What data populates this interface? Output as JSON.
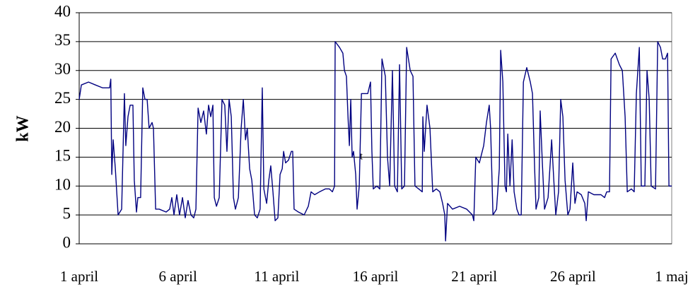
{
  "chart_data": {
    "type": "line",
    "y_label": "kW",
    "annotation": "t",
    "color": "#000080",
    "grid": true,
    "ylim": [
      0,
      40
    ],
    "yticks": [
      0,
      5,
      10,
      15,
      20,
      25,
      30,
      35,
      40
    ],
    "xlim": [
      0,
      30
    ],
    "xticks": [
      {
        "value": 0,
        "label": "1 april"
      },
      {
        "value": 5,
        "label": "6 april"
      },
      {
        "value": 10,
        "label": "11 april"
      },
      {
        "value": 15,
        "label": "16 april"
      },
      {
        "value": 20,
        "label": "21 april"
      },
      {
        "value": 25,
        "label": "26 april"
      },
      {
        "value": 30,
        "label": "1 maj"
      }
    ],
    "x": [
      0,
      0.11,
      0.47,
      0.82,
      1.18,
      1.54,
      1.6,
      1.65,
      1.72,
      1.83,
      1.97,
      2.15,
      2.29,
      2.36,
      2.47,
      2.58,
      2.72,
      2.79,
      2.9,
      2.97,
      3.11,
      3.22,
      3.33,
      3.44,
      3.54,
      3.69,
      3.76,
      3.87,
      4.05,
      4.4,
      4.58,
      4.69,
      4.8,
      4.94,
      5.08,
      5.23,
      5.37,
      5.51,
      5.66,
      5.8,
      5.91,
      6.02,
      6.16,
      6.3,
      6.44,
      6.55,
      6.66,
      6.77,
      6.84,
      6.95,
      7.09,
      7.23,
      7.37,
      7.48,
      7.59,
      7.7,
      7.81,
      7.91,
      8.06,
      8.2,
      8.31,
      8.42,
      8.51,
      8.63,
      8.74,
      8.88,
      9.02,
      9.16,
      9.27,
      9.35,
      9.49,
      9.6,
      9.7,
      9.81,
      9.92,
      10.06,
      10.17,
      10.28,
      10.35,
      10.45,
      10.6,
      10.74,
      10.81,
      10.88,
      11.1,
      11.39,
      11.6,
      11.74,
      11.92,
      12.17,
      12.46,
      12.67,
      12.82,
      12.93,
      12.96,
      13.18,
      13.35,
      13.43,
      13.53,
      13.61,
      13.68,
      13.75,
      13.82,
      13.89,
      14.0,
      14.07,
      14.18,
      14.29,
      14.43,
      14.61,
      14.75,
      14.82,
      14.89,
      15.07,
      15.22,
      15.33,
      15.5,
      15.61,
      15.72,
      15.86,
      15.97,
      16.11,
      16.22,
      16.33,
      16.47,
      16.58,
      16.76,
      16.9,
      17.0,
      17.19,
      17.37,
      17.4,
      17.47,
      17.61,
      17.76,
      17.9,
      18.08,
      18.26,
      18.4,
      18.51,
      18.55,
      18.65,
      18.9,
      19.26,
      19.62,
      19.91,
      19.98,
      20.08,
      20.26,
      20.48,
      20.62,
      20.76,
      20.83,
      20.95,
      21.13,
      21.27,
      21.34,
      21.45,
      21.56,
      21.63,
      21.7,
      21.81,
      21.92,
      22.02,
      22.16,
      22.27,
      22.38,
      22.49,
      22.66,
      22.84,
      22.95,
      23.06,
      23.13,
      23.27,
      23.34,
      23.45,
      23.56,
      23.74,
      23.92,
      24.03,
      24.13,
      24.27,
      24.38,
      24.49,
      24.6,
      24.74,
      24.85,
      24.99,
      25.1,
      25.21,
      25.42,
      25.6,
      25.67,
      25.78,
      26.06,
      26.42,
      26.6,
      26.71,
      26.85,
      26.93,
      27.14,
      27.35,
      27.5,
      27.64,
      27.75,
      27.96,
      28.1,
      28.21,
      28.36,
      28.46,
      28.64,
      28.75,
      28.86,
      28.96,
      29.18,
      29.29,
      29.43,
      29.54,
      29.68,
      29.79,
      29.86,
      30.0
    ],
    "values": [
      25,
      27.5,
      28,
      27.5,
      27,
      27,
      28.5,
      12,
      18,
      13,
      5,
      6,
      26,
      17,
      22,
      24,
      24,
      11,
      5.5,
      8,
      8,
      27,
      25,
      25,
      20,
      21,
      20,
      6,
      6,
      5.5,
      6,
      8,
      5,
      8.5,
      5,
      8,
      4.5,
      7.5,
      5,
      4.5,
      6,
      23.5,
      21,
      23,
      19,
      24,
      22,
      24,
      8,
      6.5,
      8,
      25,
      24,
      16,
      25,
      22,
      8,
      6,
      8,
      20,
      25,
      18,
      20,
      13,
      11,
      5,
      4.5,
      6,
      27,
      9.5,
      7,
      11,
      13.5,
      9,
      4,
      4.5,
      12,
      13,
      16,
      14,
      14.5,
      16,
      16,
      6,
      5.5,
      5,
      6.5,
      9,
      8.5,
      9,
      9.5,
      9.5,
      9,
      10,
      35,
      34,
      33,
      30,
      29,
      22,
      17,
      25,
      15,
      16,
      12,
      6,
      10,
      26,
      26,
      26,
      28,
      16,
      9.5,
      10,
      9.5,
      32,
      29,
      15,
      10,
      30,
      10,
      9,
      31,
      9.5,
      10,
      34,
      30,
      29,
      10,
      9.5,
      9,
      22,
      16,
      24,
      20,
      9,
      9.5,
      9,
      7,
      5,
      0.5,
      7,
      6,
      6.5,
      6,
      5,
      4,
      15,
      14,
      17,
      21,
      24,
      20,
      5,
      6,
      13,
      33.5,
      28,
      10,
      9,
      19,
      10,
      18,
      9,
      6,
      5,
      5,
      28,
      30.5,
      28,
      26,
      13,
      6,
      8,
      23,
      14,
      6,
      8,
      18,
      11,
      5,
      9,
      25,
      22,
      11,
      5,
      6,
      14,
      7,
      9,
      8.5,
      7,
      4,
      9,
      8.5,
      8.5,
      8,
      9,
      9,
      32,
      33,
      31,
      30,
      22,
      9,
      9.5,
      9,
      26,
      34,
      10,
      10,
      30,
      25,
      10,
      9.5,
      35,
      34,
      32,
      32,
      33,
      10,
      10
    ]
  }
}
